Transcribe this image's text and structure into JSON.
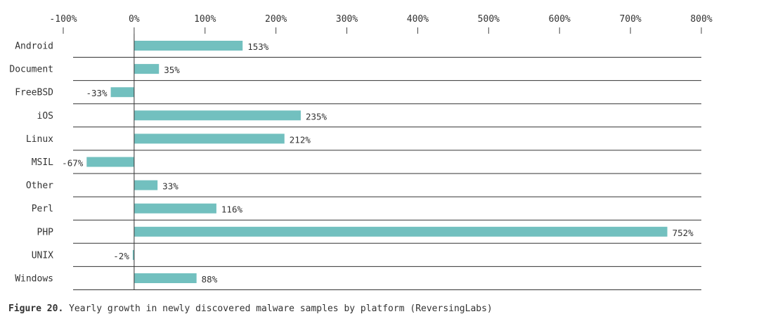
{
  "chart_data": {
    "type": "bar",
    "orientation": "horizontal",
    "categories": [
      "Android",
      "Document",
      "FreeBSD",
      "iOS",
      "Linux",
      "MSIL",
      "Other",
      "Perl",
      "PHP",
      "UNIX",
      "Windows"
    ],
    "values": [
      153,
      35,
      -33,
      235,
      212,
      -67,
      33,
      116,
      752,
      -2,
      88
    ],
    "value_labels": [
      "153%",
      "35%",
      "-33%",
      "235%",
      "212%",
      "-67%",
      "33%",
      "116%",
      "752%",
      "-2%",
      "88%"
    ],
    "x_ticks": [
      -100,
      0,
      100,
      200,
      300,
      400,
      500,
      600,
      700,
      800
    ],
    "x_tick_labels": [
      "-100%",
      "0%",
      "100%",
      "200%",
      "300%",
      "400%",
      "500%",
      "600%",
      "700%",
      "800%"
    ],
    "xlim": [
      -100,
      800
    ],
    "xlabel": "",
    "ylabel": "",
    "axis_position": "top",
    "grid": false,
    "bar_color": "#72c0bf"
  },
  "caption": {
    "label": "Figure 20.",
    "text": "Yearly growth in newly discovered malware samples by platform (ReversingLabs)"
  }
}
